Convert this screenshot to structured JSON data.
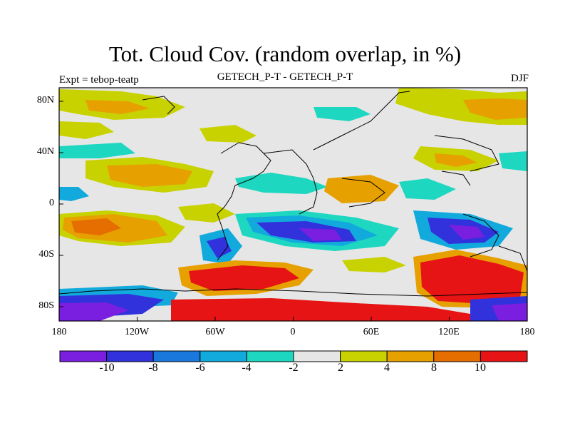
{
  "title": "Tot. Cloud Cov. (random overlap, in %)",
  "subtitle_left": "Expt = tebop-teatp",
  "subtitle_center": "GETECH_P-T - GETECH_P-T",
  "subtitle_right": "DJF",
  "y_ticks": [
    "80N",
    "40N",
    "0",
    "40S",
    "80S"
  ],
  "x_ticks": [
    "180",
    "120W",
    "60W",
    "0",
    "60E",
    "120E",
    "180"
  ],
  "colorbar": {
    "colors": [
      "#7a1fe0",
      "#3232dc",
      "#1a78dc",
      "#12aadc",
      "#1ed7c0",
      "#e6e6e6",
      "#c8d200",
      "#e6a000",
      "#e66e00",
      "#e61414"
    ],
    "labels": [
      "-10",
      "-8",
      "-6",
      "-4",
      "-2",
      "2",
      "4",
      "8",
      "10"
    ]
  }
}
